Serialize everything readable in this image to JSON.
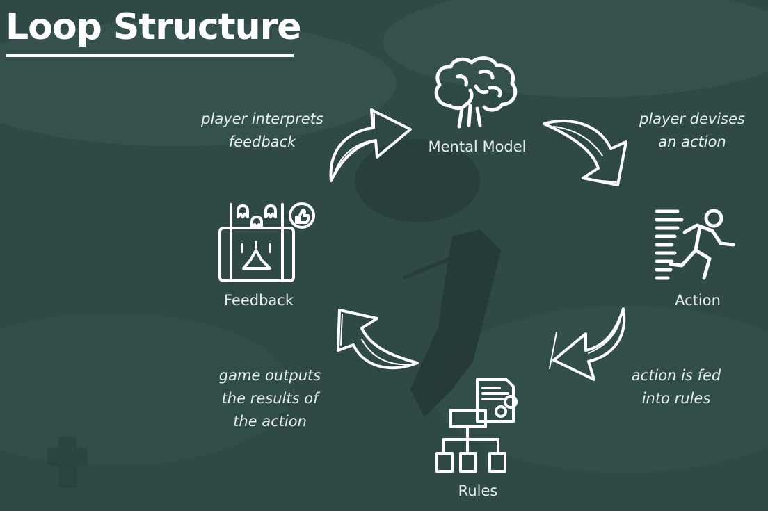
{
  "title": "Loop Structure",
  "nodes": {
    "mental_model": {
      "label": "Mental Model",
      "icon": "brain-icon"
    },
    "action": {
      "label": "Action",
      "icon": "running-person-icon"
    },
    "rules": {
      "label": "Rules",
      "icon": "flowchart-document-icon"
    },
    "feedback": {
      "label": "Feedback",
      "icon": "mobile-game-icon"
    }
  },
  "edges": {
    "interprets": [
      "player interprets",
      "feedback"
    ],
    "devises": [
      "player devises",
      "an action"
    ],
    "fed": [
      "action is fed",
      "into rules"
    ],
    "outputs": [
      "game outputs",
      "the results of",
      "the action"
    ]
  },
  "colors": {
    "background": "#2f4a46",
    "foreground": "#ffffff",
    "text": "#e9efee"
  }
}
